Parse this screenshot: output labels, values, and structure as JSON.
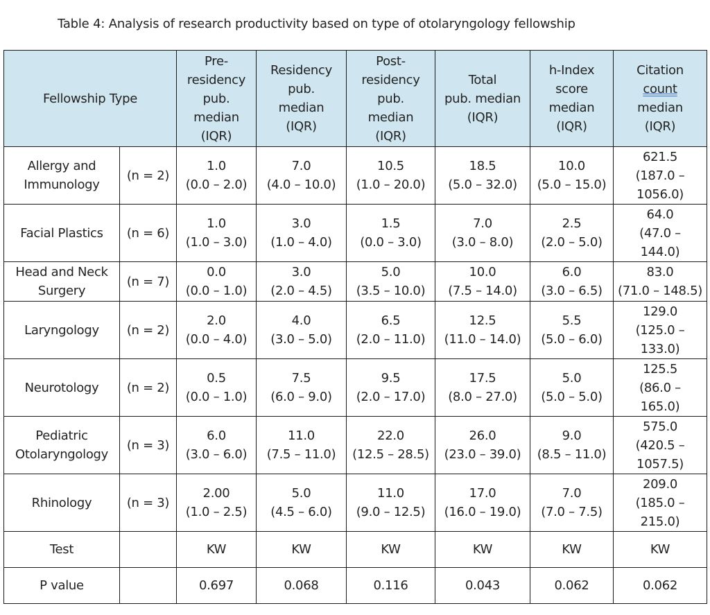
{
  "caption": "Table 4: Analysis of research productivity based on type of otolaryngology fellowship",
  "colors": {
    "header_bg": "#cfe5ef",
    "border": "#1a1a1a",
    "text": "#222222"
  },
  "header": {
    "fellowship_type": "Fellowship Type",
    "pre": [
      "Pre-",
      "residency",
      "pub.",
      "median",
      "(IQR)"
    ],
    "res": [
      "Residency",
      "pub.",
      "median",
      "(IQR)"
    ],
    "post": [
      "Post-",
      "residency",
      "pub.",
      "median",
      "(IQR)"
    ],
    "total": [
      "Total",
      "pub. median",
      "(IQR)"
    ],
    "hindex": [
      "h-Index",
      "score",
      "median",
      "(IQR)"
    ],
    "citation": [
      "Citation",
      "count",
      "median",
      "(IQR)"
    ]
  },
  "rows": [
    {
      "type": [
        "Allergy and",
        "Immunology"
      ],
      "n": "(n = 2)",
      "pre": [
        "1.0",
        "(0.0 – 2.0)"
      ],
      "res": [
        "7.0",
        "(4.0 – 10.0)"
      ],
      "post": [
        "10.5",
        "(1.0 – 20.0)"
      ],
      "total": [
        "18.5",
        "(5.0 – 32.0)"
      ],
      "hindex": [
        "10.0",
        "(5.0 – 15.0)"
      ],
      "citation": [
        "621.5",
        "(187.0 –",
        "1056.0)"
      ]
    },
    {
      "type": [
        "Facial Plastics"
      ],
      "n": "(n = 6)",
      "pre": [
        "1.0",
        "(1.0 – 3.0)"
      ],
      "res": [
        "3.0",
        "(1.0 – 4.0)"
      ],
      "post": [
        "1.5",
        "(0.0 – 3.0)"
      ],
      "total": [
        "7.0",
        "(3.0 – 8.0)"
      ],
      "hindex": [
        "2.5",
        "(2.0 – 5.0)"
      ],
      "citation": [
        "64.0",
        "(47.0 –",
        "144.0)"
      ]
    },
    {
      "type": [
        "Head and Neck",
        "Surgery"
      ],
      "n": "(n = 7)",
      "pre": [
        "0.0",
        "(0.0 – 1.0)"
      ],
      "res": [
        "3.0",
        "(2.0 – 4.5)"
      ],
      "post": [
        "5.0",
        "(3.5 – 10.0)"
      ],
      "total": [
        "10.0",
        "(7.5 – 14.0)"
      ],
      "hindex": [
        "6.0",
        "(3.0 – 6.5)"
      ],
      "citation": [
        "83.0",
        "(71.0 – 148.5)"
      ]
    },
    {
      "type": [
        "Laryngology"
      ],
      "n": "(n = 2)",
      "pre": [
        "2.0",
        "(0.0 – 4.0)"
      ],
      "res": [
        "4.0",
        "(3.0 – 5.0)"
      ],
      "post": [
        "6.5",
        "(2.0 – 11.0)"
      ],
      "total": [
        "12.5",
        "(11.0 – 14.0)"
      ],
      "hindex": [
        "5.5",
        "(5.0 – 6.0)"
      ],
      "citation": [
        "129.0",
        "(125.0 –",
        "133.0)"
      ]
    },
    {
      "type": [
        "Neurotology"
      ],
      "n": "(n = 2)",
      "pre": [
        "0.5",
        "(0.0 – 1.0)"
      ],
      "res": [
        "7.5",
        "(6.0 – 9.0)"
      ],
      "post": [
        "9.5",
        "(2.0 – 17.0)"
      ],
      "total": [
        "17.5",
        "(8.0 – 27.0)"
      ],
      "hindex": [
        "5.0",
        "(5.0 – 5.0)"
      ],
      "citation": [
        "125.5",
        "(86.0 –",
        "165.0)"
      ]
    },
    {
      "type": [
        "Pediatric",
        "Otolaryngology"
      ],
      "n": "(n = 3)",
      "pre": [
        "6.0",
        "(3.0 – 6.0)"
      ],
      "res": [
        "11.0",
        "(7.5 – 11.0)"
      ],
      "post": [
        "22.0",
        "(12.5 – 28.5)"
      ],
      "total": [
        "26.0",
        "(23.0 – 39.0)"
      ],
      "hindex": [
        "9.0",
        "(8.5 – 11.0)"
      ],
      "citation": [
        "575.0",
        "(420.5 –",
        "1057.5)"
      ]
    },
    {
      "type": [
        "Rhinology"
      ],
      "n": "(n = 3)",
      "pre": [
        "2.00",
        "(1.0 – 2.5)"
      ],
      "res": [
        "5.0",
        "(4.5 – 6.0)"
      ],
      "post": [
        "11.0",
        "(9.0 – 12.5)"
      ],
      "total": [
        "17.0",
        "(16.0 – 19.0)"
      ],
      "hindex": [
        "7.0",
        "(7.0 – 7.5)"
      ],
      "citation": [
        "209.0",
        "(185.0 –",
        "215.0)"
      ]
    }
  ],
  "test_row": {
    "label": "Test",
    "values": [
      "KW",
      "KW",
      "KW",
      "KW",
      "KW",
      "KW"
    ]
  },
  "p_row": {
    "label": "P value",
    "values": [
      "0.697",
      "0.068",
      "0.116",
      "0.043",
      "0.062",
      "0.062"
    ]
  }
}
